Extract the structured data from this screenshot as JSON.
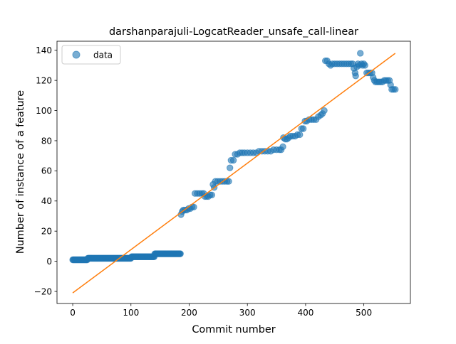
{
  "chart_data": {
    "type": "scatter",
    "title": "darshanparajuli-LogcatReader_unsafe_call-linear",
    "xlabel": "Commit number",
    "ylabel": "Number of instance of a feature",
    "xlim": [
      -27,
      580
    ],
    "ylim": [
      -28,
      146
    ],
    "xticks": [
      0,
      100,
      200,
      300,
      400,
      500
    ],
    "yticks": [
      -20,
      0,
      20,
      40,
      60,
      80,
      100,
      120,
      140
    ],
    "ytick_labels": [
      "−20",
      "0",
      "20",
      "40",
      "60",
      "80",
      "100",
      "120",
      "140"
    ],
    "grid": false,
    "legend": {
      "position": "top-left",
      "entries": [
        "data"
      ]
    },
    "series": [
      {
        "name": "data",
        "kind": "scatter",
        "color": "#1f77b4",
        "segments": [
          {
            "x_start": 0,
            "x_end": 25,
            "y": 1
          },
          {
            "x_start": 26,
            "x_end": 100,
            "y": 2
          },
          {
            "x_start": 101,
            "x_end": 140,
            "y": 3
          },
          {
            "x_start": 141,
            "x_end": 185,
            "y": 5
          }
        ],
        "points": [
          [
            186,
            31
          ],
          [
            188,
            33
          ],
          [
            190,
            34
          ],
          [
            193,
            34
          ],
          [
            196,
            34
          ],
          [
            199,
            35
          ],
          [
            202,
            35
          ],
          [
            205,
            36
          ],
          [
            208,
            36
          ],
          [
            210,
            45
          ],
          [
            214,
            45
          ],
          [
            218,
            45
          ],
          [
            222,
            45
          ],
          [
            225,
            45
          ],
          [
            227,
            43
          ],
          [
            230,
            43
          ],
          [
            233,
            43
          ],
          [
            236,
            44
          ],
          [
            239,
            44
          ],
          [
            241,
            51
          ],
          [
            243,
            49
          ],
          [
            245,
            53
          ],
          [
            249,
            53
          ],
          [
            253,
            53
          ],
          [
            257,
            53
          ],
          [
            261,
            53
          ],
          [
            265,
            53
          ],
          [
            268,
            53
          ],
          [
            270,
            62
          ],
          [
            272,
            67
          ],
          [
            276,
            67
          ],
          [
            279,
            71
          ],
          [
            283,
            71
          ],
          [
            287,
            72
          ],
          [
            291,
            72
          ],
          [
            295,
            72
          ],
          [
            300,
            72
          ],
          [
            305,
            72
          ],
          [
            310,
            72
          ],
          [
            315,
            72
          ],
          [
            320,
            73
          ],
          [
            325,
            73
          ],
          [
            330,
            73
          ],
          [
            335,
            73
          ],
          [
            340,
            73
          ],
          [
            345,
            74
          ],
          [
            350,
            74
          ],
          [
            355,
            74
          ],
          [
            358,
            74
          ],
          [
            361,
            76
          ],
          [
            362,
            82
          ],
          [
            365,
            81
          ],
          [
            368,
            81
          ],
          [
            371,
            82
          ],
          [
            374,
            83
          ],
          [
            378,
            83
          ],
          [
            382,
            83
          ],
          [
            386,
            84
          ],
          [
            390,
            84
          ],
          [
            393,
            88
          ],
          [
            396,
            88
          ],
          [
            399,
            93
          ],
          [
            402,
            93
          ],
          [
            406,
            94
          ],
          [
            410,
            94
          ],
          [
            414,
            94
          ],
          [
            418,
            94
          ],
          [
            422,
            96
          ],
          [
            426,
            97
          ],
          [
            429,
            98
          ],
          [
            432,
            100
          ],
          [
            434,
            133
          ],
          [
            437,
            133
          ],
          [
            440,
            131
          ],
          [
            443,
            130
          ],
          [
            446,
            131
          ],
          [
            450,
            131
          ],
          [
            454,
            131
          ],
          [
            458,
            131
          ],
          [
            462,
            131
          ],
          [
            466,
            131
          ],
          [
            470,
            131
          ],
          [
            474,
            131
          ],
          [
            478,
            131
          ],
          [
            481,
            131
          ],
          [
            483,
            128
          ],
          [
            485,
            125
          ],
          [
            486,
            123
          ],
          [
            488,
            129
          ],
          [
            490,
            131
          ],
          [
            492,
            130
          ],
          [
            494,
            138
          ],
          [
            496,
            131
          ],
          [
            498,
            130
          ],
          [
            500,
            131
          ],
          [
            502,
            130
          ],
          [
            505,
            125
          ],
          [
            508,
            125
          ],
          [
            511,
            125
          ],
          [
            514,
            125
          ],
          [
            516,
            122
          ],
          [
            518,
            120
          ],
          [
            520,
            119
          ],
          [
            523,
            119
          ],
          [
            526,
            119
          ],
          [
            529,
            119
          ],
          [
            532,
            119
          ],
          [
            535,
            120
          ],
          [
            538,
            120
          ],
          [
            541,
            120
          ],
          [
            544,
            120
          ],
          [
            546,
            117
          ],
          [
            548,
            114
          ],
          [
            551,
            114
          ],
          [
            554,
            114
          ]
        ]
      },
      {
        "name": "linear",
        "kind": "line",
        "color": "#ff7f0e",
        "points": [
          [
            0,
            -21
          ],
          [
            554,
            138
          ]
        ]
      }
    ]
  }
}
